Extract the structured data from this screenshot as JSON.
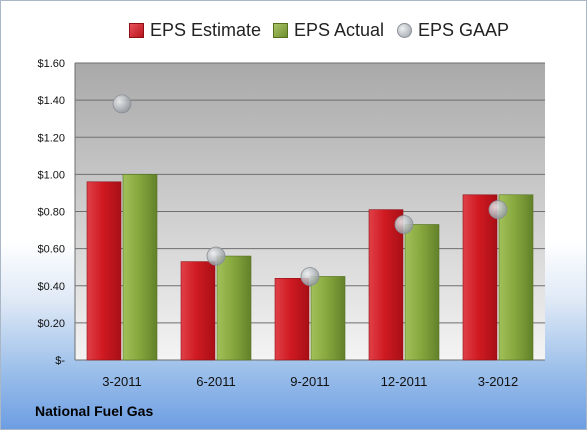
{
  "company": "National Fuel Gas",
  "chart_data": {
    "type": "bar",
    "categories": [
      "3-2011",
      "6-2011",
      "9-2011",
      "12-2011",
      "3-2012"
    ],
    "series": [
      {
        "name": "EPS Estimate",
        "kind": "bar",
        "color": "#c8171f",
        "values": [
          0.96,
          0.53,
          0.44,
          0.81,
          0.89
        ]
      },
      {
        "name": "EPS Actual",
        "kind": "bar",
        "color": "#86a83c",
        "values": [
          1.0,
          0.56,
          0.45,
          0.73,
          0.89
        ]
      },
      {
        "name": "EPS GAAP",
        "kind": "marker",
        "color": "#aab0b6",
        "values": [
          1.38,
          0.56,
          0.45,
          0.73,
          0.81
        ]
      }
    ],
    "ylim": [
      0,
      1.6
    ],
    "y_ticks": [
      {
        "value": 0,
        "label": "$-"
      },
      {
        "value": 0.2,
        "label": "$0.20"
      },
      {
        "value": 0.4,
        "label": "$0.40"
      },
      {
        "value": 0.6,
        "label": "$0.60"
      },
      {
        "value": 0.8,
        "label": "$0.80"
      },
      {
        "value": 1.0,
        "label": "$1.00"
      },
      {
        "value": 1.2,
        "label": "$1.20"
      },
      {
        "value": 1.4,
        "label": "$1.40"
      },
      {
        "value": 1.6,
        "label": "$1.60"
      }
    ],
    "grid": true,
    "legend_position": "top"
  }
}
